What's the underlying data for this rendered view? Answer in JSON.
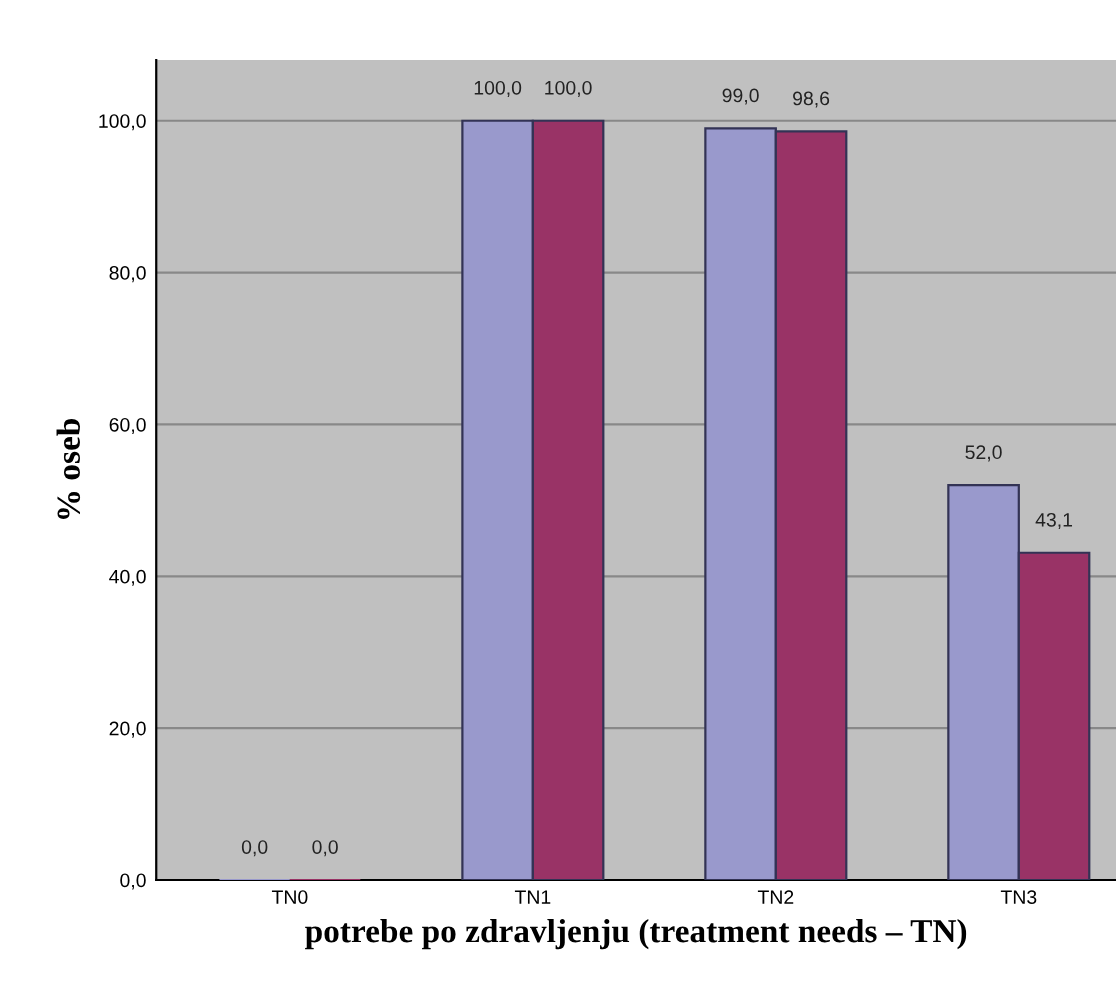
{
  "chart_data": {
    "type": "bar",
    "xlabel": "potrebe po zdravljenju (treatment needs – TN)",
    "ylabel": "% oseb",
    "categories": [
      "TN0",
      "TN1",
      "TN2",
      "TN3"
    ],
    "series": [
      {
        "color": "#9999cc",
        "values": [
          0.0,
          100.0,
          99.0,
          52.0
        ],
        "value_labels": [
          "0,0",
          "100,0",
          "99,0",
          "52,0"
        ]
      },
      {
        "color": "#993366",
        "values": [
          0.0,
          100.0,
          98.6,
          43.1
        ],
        "value_labels": [
          "0,0",
          "100,0",
          "98,6",
          "43,1"
        ]
      }
    ],
    "ylim": [
      0,
      108
    ],
    "yticks": [
      {
        "value": 0,
        "label": "0,0"
      },
      {
        "value": 20,
        "label": "20,0"
      },
      {
        "value": 40,
        "label": "40,0"
      },
      {
        "value": 60,
        "label": "60,0"
      },
      {
        "value": 80,
        "label": "80,0"
      },
      {
        "value": 100,
        "label": "100,0"
      }
    ],
    "grid": "y"
  }
}
